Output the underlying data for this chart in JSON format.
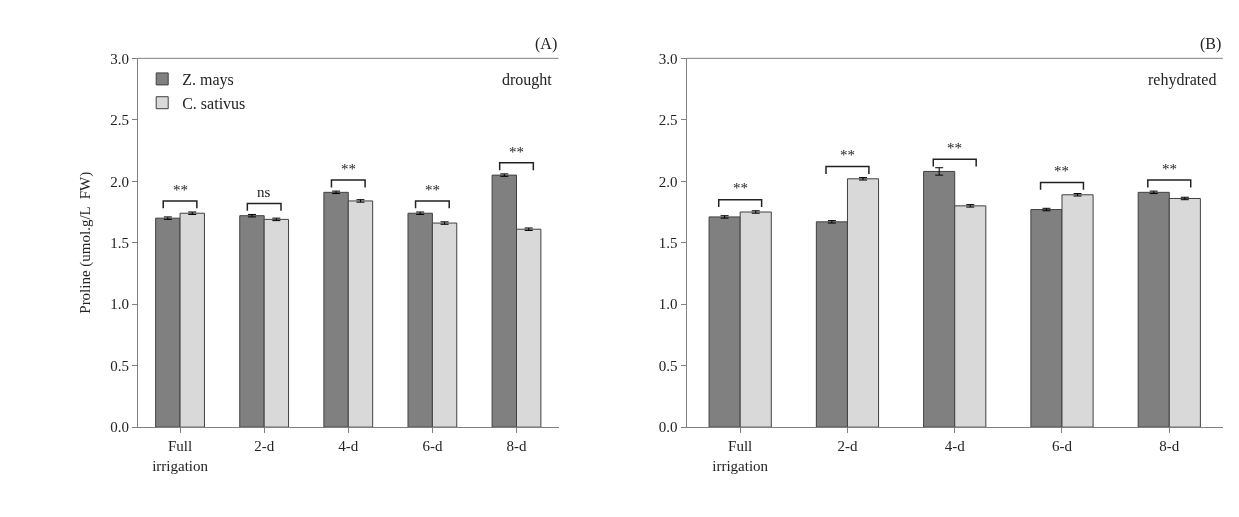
{
  "chart_data": [
    {
      "type": "bar",
      "ylabel": "Proline (umol.g/L  FW)",
      "categories": [
        "Full irrigation",
        "2-d",
        "4-d",
        "6-d",
        "8-d"
      ],
      "ylim": [
        0,
        3
      ],
      "yticks": [
        {
          "value": 0,
          "label": "0.0"
        },
        {
          "value": 0.5,
          "label": "0.5"
        },
        {
          "value": 1,
          "label": "1.0"
        },
        {
          "value": 1.5,
          "label": "1.5"
        },
        {
          "value": 2,
          "label": "2.0"
        },
        {
          "value": 2.5,
          "label": "2.5"
        },
        {
          "value": 3,
          "label": "3.0"
        }
      ],
      "legend": "top left",
      "series": [
        {
          "name": "Z. mays",
          "color": "#808080",
          "values": [
            1.7,
            1.72,
            1.91,
            1.74,
            2.05
          ],
          "errors": [
            0.01,
            0.01,
            0.01,
            0.01,
            0.01
          ]
        },
        {
          "name": "C. sativus",
          "color": "#d9d9d9",
          "values": [
            1.74,
            1.69,
            1.84,
            1.66,
            1.61
          ],
          "errors": [
            0.01,
            0.01,
            0.01,
            0.01,
            0.01
          ]
        }
      ],
      "annotations": [
        "(A)",
        "drought",
        "**",
        "ns",
        "**",
        "**",
        "**"
      ]
    },
    {
      "type": "bar",
      "categories": [
        "Full irrigation",
        "2-d",
        "4-d",
        "6-d",
        "8-d"
      ],
      "ylim": [
        0,
        3
      ],
      "yticks": [
        {
          "value": 0,
          "label": "0.0"
        },
        {
          "value": 0.5,
          "label": "0.5"
        },
        {
          "value": 1,
          "label": "1.0"
        },
        {
          "value": 1.5,
          "label": "1.5"
        },
        {
          "value": 2,
          "label": "2.0"
        },
        {
          "value": 2.5,
          "label": "2.5"
        },
        {
          "value": 3,
          "label": "3.0"
        }
      ],
      "series": [
        {
          "color": "#808080",
          "values": [
            1.71,
            1.67,
            2.08,
            1.77,
            1.91
          ],
          "errors": [
            0.01,
            0.01,
            0.03,
            0.01,
            0.01
          ]
        },
        {
          "color": "#d9d9d9",
          "values": [
            1.75,
            2.02,
            1.8,
            1.89,
            1.86
          ],
          "errors": [
            0.01,
            0.01,
            0.01,
            0.01,
            0.01
          ]
        }
      ],
      "annotations": [
        "(B)",
        "rehydrated",
        "**",
        "**",
        "**",
        "**",
        "**"
      ]
    }
  ]
}
